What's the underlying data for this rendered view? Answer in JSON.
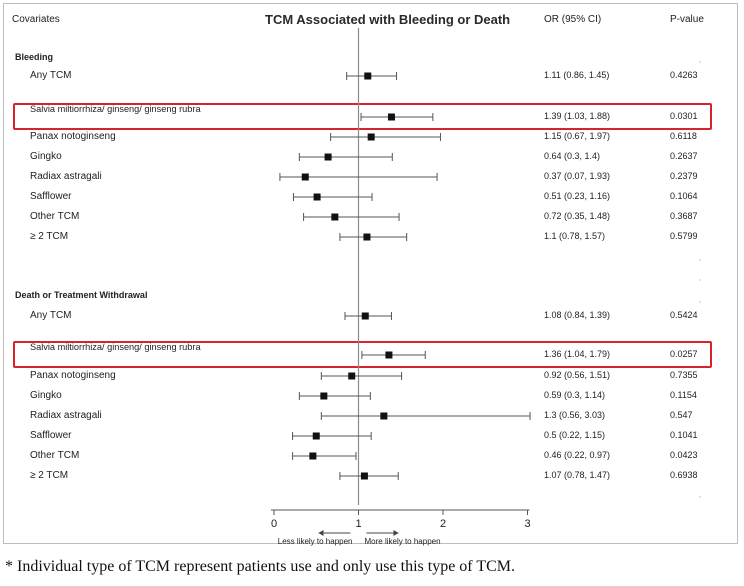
{
  "header": {
    "covariates": "Covariates",
    "title": "TCM Associated with Bleeding or Death",
    "or_col": "OR (95% CI)",
    "p_col": "P-value"
  },
  "footnote": "* Individual type of TCM represent patients use and only use this type of TCM.",
  "colors": {
    "highlight": "#d8232a",
    "marker": "#111111"
  },
  "chart_data": {
    "type": "forest",
    "xlim": [
      0,
      3
    ],
    "x_ticks": [
      "0",
      "1",
      "2",
      "3"
    ],
    "reference_line": 1,
    "axis_left_note": "Less likely to happen",
    "axis_right_note": "More likely to happen",
    "sections": [
      {
        "title": "Bleeding",
        "rows": [
          {
            "label": "Any TCM",
            "or": 1.11,
            "lo": 0.86,
            "hi": 1.45,
            "or_text": "1.11 (0.86, 1.45)",
            "p": "0.4263",
            "highlight": false
          },
          {
            "label": "Salvia miltiorrhiza/ ginseng/ ginseng rubra",
            "or": 1.39,
            "lo": 1.03,
            "hi": 1.88,
            "or_text": "1.39 (1.03, 1.88)",
            "p": "0.0301",
            "highlight": true
          },
          {
            "label": "Panax notoginseng",
            "or": 1.15,
            "lo": 0.67,
            "hi": 1.97,
            "or_text": "1.15 (0.67, 1.97)",
            "p": "0.6118",
            "highlight": false
          },
          {
            "label": "Gingko",
            "or": 0.64,
            "lo": 0.3,
            "hi": 1.4,
            "or_text": "0.64 (0.3, 1.4)",
            "p": "0.2637",
            "highlight": false
          },
          {
            "label": "Radiax astragali",
            "or": 0.37,
            "lo": 0.07,
            "hi": 1.93,
            "or_text": "0.37 (0.07, 1.93)",
            "p": "0.2379",
            "highlight": false
          },
          {
            "label": "Safflower",
            "or": 0.51,
            "lo": 0.23,
            "hi": 1.16,
            "or_text": "0.51 (0.23, 1.16)",
            "p": "0.1064",
            "highlight": false
          },
          {
            "label": "Other TCM",
            "or": 0.72,
            "lo": 0.35,
            "hi": 1.48,
            "or_text": "0.72 (0.35, 1.48)",
            "p": "0.3687",
            "highlight": false
          },
          {
            "label": "≥ 2 TCM",
            "or": 1.1,
            "lo": 0.78,
            "hi": 1.57,
            "or_text": "1.1 (0.78, 1.57)",
            "p": "0.5799",
            "highlight": false
          }
        ]
      },
      {
        "title": "Death or Treatment Withdrawal",
        "rows": [
          {
            "label": "Any TCM",
            "or": 1.08,
            "lo": 0.84,
            "hi": 1.39,
            "or_text": "1.08 (0.84, 1.39)",
            "p": "0.5424",
            "highlight": false
          },
          {
            "label": "Salvia miltiorrhiza/ ginseng/ ginseng rubra",
            "or": 1.36,
            "lo": 1.04,
            "hi": 1.79,
            "or_text": "1.36 (1.04, 1.79)",
            "p": "0.0257",
            "highlight": true
          },
          {
            "label": "Panax notoginseng",
            "or": 0.92,
            "lo": 0.56,
            "hi": 1.51,
            "or_text": "0.92 (0.56, 1.51)",
            "p": "0.7355",
            "highlight": false
          },
          {
            "label": "Gingko",
            "or": 0.59,
            "lo": 0.3,
            "hi": 1.14,
            "or_text": "0.59 (0.3, 1.14)",
            "p": "0.1154",
            "highlight": false
          },
          {
            "label": "Radiax astragali",
            "or": 1.3,
            "lo": 0.56,
            "hi": 3.03,
            "or_text": "1.3 (0.56, 3.03)",
            "p": "0.547",
            "highlight": false
          },
          {
            "label": "Safflower",
            "or": 0.5,
            "lo": 0.22,
            "hi": 1.15,
            "or_text": "0.5 (0.22, 1.15)",
            "p": "0.1041",
            "highlight": false
          },
          {
            "label": "Other TCM",
            "or": 0.46,
            "lo": 0.22,
            "hi": 0.97,
            "or_text": "0.46 (0.22, 0.97)",
            "p": "0.0423",
            "highlight": false
          },
          {
            "label": "≥ 2 TCM",
            "or": 1.07,
            "lo": 0.78,
            "hi": 1.47,
            "or_text": "1.07 (0.78, 1.47)",
            "p": "0.6938",
            "highlight": false
          }
        ]
      }
    ]
  }
}
